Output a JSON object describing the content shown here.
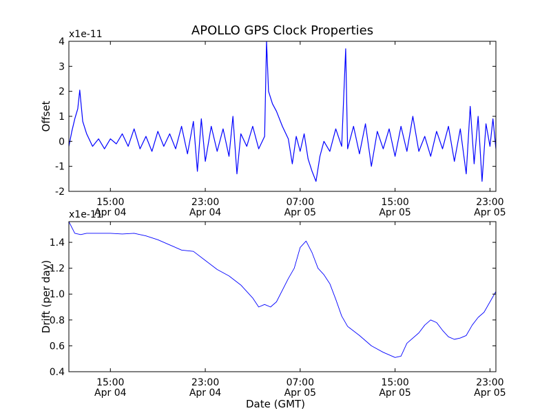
{
  "title": "APOLLO GPS Clock Properties",
  "colors": {
    "line": "#0000ff",
    "axes": "#000000",
    "background": "#ffffff"
  },
  "chart_data": [
    {
      "type": "line",
      "title": "APOLLO GPS Clock Properties",
      "ylabel": "Offset",
      "xlabel": "",
      "y_exponent_label": "x1e-11",
      "y_unit_scale": 1e-11,
      "ylim": [
        -2,
        4
      ],
      "yticks": [
        -2,
        -1,
        0,
        1,
        2,
        3,
        4
      ],
      "ytick_labels": [
        "-2",
        "-1",
        "0",
        "1",
        "2",
        "3",
        "4"
      ],
      "xlim": [
        "2013-04-04 11:30",
        "2013-04-05 23:30"
      ],
      "xticks": [
        {
          "time": "2013-04-04 15:00",
          "label_time": "15:00",
          "label_date": "Apr 04"
        },
        {
          "time": "2013-04-04 23:00",
          "label_time": "23:00",
          "label_date": "Apr 04"
        },
        {
          "time": "2013-04-05 07:00",
          "label_time": "07:00",
          "label_date": "Apr 05"
        },
        {
          "time": "2013-04-05 15:00",
          "label_time": "15:00",
          "label_date": "Apr 05"
        },
        {
          "time": "2013-04-05 23:00",
          "label_time": "23:00",
          "label_date": "Apr 05"
        }
      ],
      "series": [
        {
          "color": "#0000ff",
          "points": [
            [
              "2013-04-04 11:30",
              -0.2
            ],
            [
              "2013-04-04 11:45",
              0.4
            ],
            [
              "2013-04-04 12:00",
              0.9
            ],
            [
              "2013-04-04 12:15",
              1.3
            ],
            [
              "2013-04-04 12:25",
              2.05
            ],
            [
              "2013-04-04 12:40",
              0.8
            ],
            [
              "2013-04-04 13:00",
              0.3
            ],
            [
              "2013-04-04 13:30",
              -0.2
            ],
            [
              "2013-04-04 14:00",
              0.1
            ],
            [
              "2013-04-04 14:30",
              -0.3
            ],
            [
              "2013-04-04 15:00",
              0.1
            ],
            [
              "2013-04-04 15:30",
              -0.1
            ],
            [
              "2013-04-04 16:00",
              0.3
            ],
            [
              "2013-04-04 16:30",
              -0.2
            ],
            [
              "2013-04-04 17:00",
              0.5
            ],
            [
              "2013-04-04 17:30",
              -0.3
            ],
            [
              "2013-04-04 18:00",
              0.2
            ],
            [
              "2013-04-04 18:30",
              -0.4
            ],
            [
              "2013-04-04 19:00",
              0.4
            ],
            [
              "2013-04-04 19:30",
              -0.2
            ],
            [
              "2013-04-04 20:00",
              0.3
            ],
            [
              "2013-04-04 20:30",
              -0.3
            ],
            [
              "2013-04-04 21:00",
              0.6
            ],
            [
              "2013-04-04 21:30",
              -0.5
            ],
            [
              "2013-04-04 22:00",
              0.8
            ],
            [
              "2013-04-04 22:20",
              -1.2
            ],
            [
              "2013-04-04 22:40",
              0.9
            ],
            [
              "2013-04-04 23:00",
              -0.8
            ],
            [
              "2013-04-04 23:30",
              0.6
            ],
            [
              "2013-04-05 00:00",
              -0.4
            ],
            [
              "2013-04-05 00:30",
              0.5
            ],
            [
              "2013-04-05 01:00",
              -0.6
            ],
            [
              "2013-04-05 01:20",
              1.0
            ],
            [
              "2013-04-05 01:40",
              -1.3
            ],
            [
              "2013-04-05 02:00",
              0.3
            ],
            [
              "2013-04-05 02:30",
              -0.2
            ],
            [
              "2013-04-05 03:00",
              0.6
            ],
            [
              "2013-04-05 03:30",
              -0.3
            ],
            [
              "2013-04-05 04:00",
              0.2
            ],
            [
              "2013-04-05 04:10",
              4.0
            ],
            [
              "2013-04-05 04:20",
              2.0
            ],
            [
              "2013-04-05 04:40",
              1.5
            ],
            [
              "2013-04-05 05:00",
              1.2
            ],
            [
              "2013-04-05 05:30",
              0.6
            ],
            [
              "2013-04-05 06:00",
              0.1
            ],
            [
              "2013-04-05 06:20",
              -0.9
            ],
            [
              "2013-04-05 06:40",
              0.2
            ],
            [
              "2013-04-05 07:00",
              -0.4
            ],
            [
              "2013-04-05 07:20",
              0.3
            ],
            [
              "2013-04-05 07:40",
              -0.7
            ],
            [
              "2013-04-05 08:00",
              -1.2
            ],
            [
              "2013-04-05 08:20",
              -1.6
            ],
            [
              "2013-04-05 08:40",
              -0.6
            ],
            [
              "2013-04-05 09:00",
              0.0
            ],
            [
              "2013-04-05 09:30",
              -0.4
            ],
            [
              "2013-04-05 10:00",
              0.5
            ],
            [
              "2013-04-05 10:30",
              -0.2
            ],
            [
              "2013-04-05 10:50",
              3.7
            ],
            [
              "2013-04-05 11:00",
              -0.3
            ],
            [
              "2013-04-05 11:30",
              0.6
            ],
            [
              "2013-04-05 12:00",
              -0.5
            ],
            [
              "2013-04-05 12:30",
              0.7
            ],
            [
              "2013-04-05 13:00",
              -1.0
            ],
            [
              "2013-04-05 13:30",
              0.4
            ],
            [
              "2013-04-05 14:00",
              -0.3
            ],
            [
              "2013-04-05 14:30",
              0.5
            ],
            [
              "2013-04-05 15:00",
              -0.6
            ],
            [
              "2013-04-05 15:30",
              0.6
            ],
            [
              "2013-04-05 16:00",
              -0.4
            ],
            [
              "2013-04-05 16:30",
              1.0
            ],
            [
              "2013-04-05 17:00",
              -0.4
            ],
            [
              "2013-04-05 17:30",
              0.2
            ],
            [
              "2013-04-05 18:00",
              -0.6
            ],
            [
              "2013-04-05 18:30",
              0.4
            ],
            [
              "2013-04-05 19:00",
              -0.3
            ],
            [
              "2013-04-05 19:30",
              0.6
            ],
            [
              "2013-04-05 20:00",
              -0.8
            ],
            [
              "2013-04-05 20:30",
              0.5
            ],
            [
              "2013-04-05 21:00",
              -1.3
            ],
            [
              "2013-04-05 21:20",
              1.4
            ],
            [
              "2013-04-05 21:40",
              -0.9
            ],
            [
              "2013-04-05 22:00",
              1.0
            ],
            [
              "2013-04-05 22:20",
              -1.6
            ],
            [
              "2013-04-05 22:40",
              0.7
            ],
            [
              "2013-04-05 23:00",
              -0.2
            ],
            [
              "2013-04-05 23:15",
              0.9
            ],
            [
              "2013-04-05 23:30",
              -0.3
            ]
          ]
        }
      ]
    },
    {
      "type": "line",
      "title": "",
      "ylabel": "Drift (per day)",
      "xlabel": "Date (GMT)",
      "y_exponent_label": "x1e-11",
      "y_unit_scale": 1e-11,
      "ylim": [
        0.4,
        1.56
      ],
      "yticks": [
        0.4,
        0.6,
        0.8,
        1.0,
        1.2,
        1.4
      ],
      "ytick_labels": [
        "0.4",
        "0.6",
        "0.8",
        "1.0",
        "1.2",
        "1.4"
      ],
      "xlim": [
        "2013-04-04 11:30",
        "2013-04-05 23:30"
      ],
      "xticks": [
        {
          "time": "2013-04-04 15:00",
          "label_time": "15:00",
          "label_date": "Apr 04"
        },
        {
          "time": "2013-04-04 23:00",
          "label_time": "23:00",
          "label_date": "Apr 04"
        },
        {
          "time": "2013-04-05 07:00",
          "label_time": "07:00",
          "label_date": "Apr 05"
        },
        {
          "time": "2013-04-05 15:00",
          "label_time": "15:00",
          "label_date": "Apr 05"
        },
        {
          "time": "2013-04-05 23:00",
          "label_time": "23:00",
          "label_date": "Apr 05"
        }
      ],
      "series": [
        {
          "color": "#0000ff",
          "points": [
            [
              "2013-04-04 11:30",
              1.56
            ],
            [
              "2013-04-04 12:00",
              1.47
            ],
            [
              "2013-04-04 12:30",
              1.46
            ],
            [
              "2013-04-04 13:00",
              1.47
            ],
            [
              "2013-04-04 14:00",
              1.47
            ],
            [
              "2013-04-04 15:00",
              1.47
            ],
            [
              "2013-04-04 16:00",
              1.465
            ],
            [
              "2013-04-04 17:00",
              1.47
            ],
            [
              "2013-04-04 18:00",
              1.45
            ],
            [
              "2013-04-04 19:00",
              1.42
            ],
            [
              "2013-04-04 20:00",
              1.38
            ],
            [
              "2013-04-04 21:00",
              1.34
            ],
            [
              "2013-04-04 22:00",
              1.33
            ],
            [
              "2013-04-04 23:00",
              1.26
            ],
            [
              "2013-04-05 00:00",
              1.19
            ],
            [
              "2013-04-05 01:00",
              1.14
            ],
            [
              "2013-04-05 02:00",
              1.07
            ],
            [
              "2013-04-05 03:00",
              0.97
            ],
            [
              "2013-04-05 03:30",
              0.9
            ],
            [
              "2013-04-05 04:00",
              0.92
            ],
            [
              "2013-04-05 04:30",
              0.9
            ],
            [
              "2013-04-05 05:00",
              0.94
            ],
            [
              "2013-04-05 06:00",
              1.12
            ],
            [
              "2013-04-05 06:30",
              1.2
            ],
            [
              "2013-04-05 07:00",
              1.36
            ],
            [
              "2013-04-05 07:30",
              1.41
            ],
            [
              "2013-04-05 08:00",
              1.32
            ],
            [
              "2013-04-05 08:30",
              1.2
            ],
            [
              "2013-04-05 09:00",
              1.15
            ],
            [
              "2013-04-05 09:30",
              1.08
            ],
            [
              "2013-04-05 10:00",
              0.96
            ],
            [
              "2013-04-05 10:30",
              0.83
            ],
            [
              "2013-04-05 11:00",
              0.75
            ],
            [
              "2013-04-05 12:00",
              0.68
            ],
            [
              "2013-04-05 13:00",
              0.6
            ],
            [
              "2013-04-05 14:00",
              0.55
            ],
            [
              "2013-04-05 15:00",
              0.51
            ],
            [
              "2013-04-05 15:30",
              0.52
            ],
            [
              "2013-04-05 16:00",
              0.62
            ],
            [
              "2013-04-05 17:00",
              0.7
            ],
            [
              "2013-04-05 17:30",
              0.76
            ],
            [
              "2013-04-05 18:00",
              0.8
            ],
            [
              "2013-04-05 18:30",
              0.78
            ],
            [
              "2013-04-05 19:00",
              0.72
            ],
            [
              "2013-04-05 19:30",
              0.67
            ],
            [
              "2013-04-05 20:00",
              0.65
            ],
            [
              "2013-04-05 20:30",
              0.66
            ],
            [
              "2013-04-05 21:00",
              0.68
            ],
            [
              "2013-04-05 21:30",
              0.76
            ],
            [
              "2013-04-05 22:00",
              0.82
            ],
            [
              "2013-04-05 22:30",
              0.86
            ],
            [
              "2013-04-05 23:00",
              0.94
            ],
            [
              "2013-04-05 23:30",
              1.02
            ]
          ]
        }
      ]
    }
  ]
}
